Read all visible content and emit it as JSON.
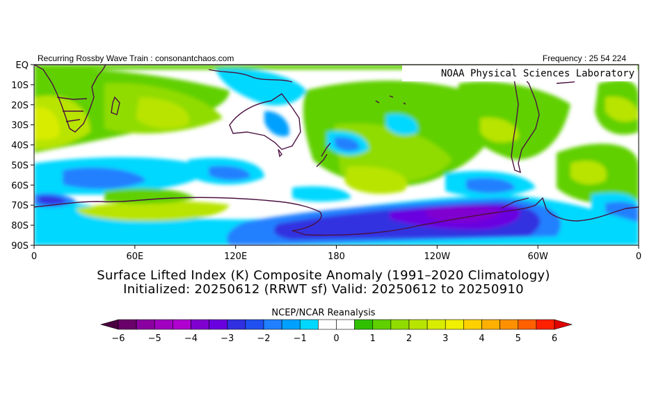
{
  "header": {
    "left_text": "Recurring Rossby Wave Train : consonantchaos.com",
    "right_text": "Frequency : 25 54 224"
  },
  "map": {
    "watermark": "NOAA Physical Sciences Laboratory",
    "lat_labels": [
      "EQ",
      "10S",
      "20S",
      "30S",
      "40S",
      "50S",
      "60S",
      "70S",
      "80S",
      "90S"
    ],
    "lon_labels": [
      "0",
      "60E",
      "120E",
      "180",
      "120W",
      "60W",
      "0"
    ],
    "coastline_color": "#4a1040"
  },
  "title": {
    "line1": "Surface Lifted Index (K) Composite Anomaly (1991–2020 Climatology)",
    "line2": "Initialized: 20250612 (RRWT sf) Valid: 20250612 to 20250910"
  },
  "source": "NCEP/NCAR Reanalysis",
  "colorbar": {
    "tick_labels": [
      "-6",
      "-5",
      "-4",
      "-3",
      "-2",
      "-1",
      "0",
      "1",
      "2",
      "3",
      "4",
      "5",
      "6"
    ],
    "colors": [
      "#6a006a",
      "#8a00a0",
      "#a000c0",
      "#b000d0",
      "#8000d0",
      "#6a00e0",
      "#3030e0",
      "#2050f0",
      "#2080ff",
      "#00a0ff",
      "#00d8ff",
      "#ffffff",
      "#ffffff",
      "#30c000",
      "#60d000",
      "#90dc00",
      "#b8e400",
      "#d8ec00",
      "#f0f000",
      "#ffd000",
      "#ffb000",
      "#ff9000",
      "#ff6000",
      "#ff2000"
    ]
  }
}
